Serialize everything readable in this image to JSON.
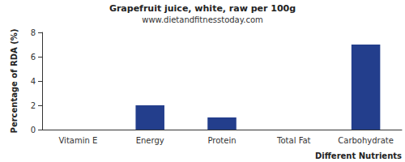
{
  "chart_data": {
    "type": "bar",
    "title": "Grapefruit juice, white, raw per 100g",
    "subtitle": "www.dietandfitnesstoday.com",
    "x_label": "Different Nutrients",
    "y_label": "Percentage of RDA (%)",
    "categories": [
      "Vitamin E",
      "Energy",
      "Protein",
      "Total Fat",
      "Carbohydrate"
    ],
    "values": [
      0,
      2,
      1,
      0,
      7
    ],
    "color": "#233e8c",
    "ylim": [
      0,
      8
    ],
    "yticks": [
      0,
      2,
      4,
      6,
      8
    ],
    "grid": false
  }
}
